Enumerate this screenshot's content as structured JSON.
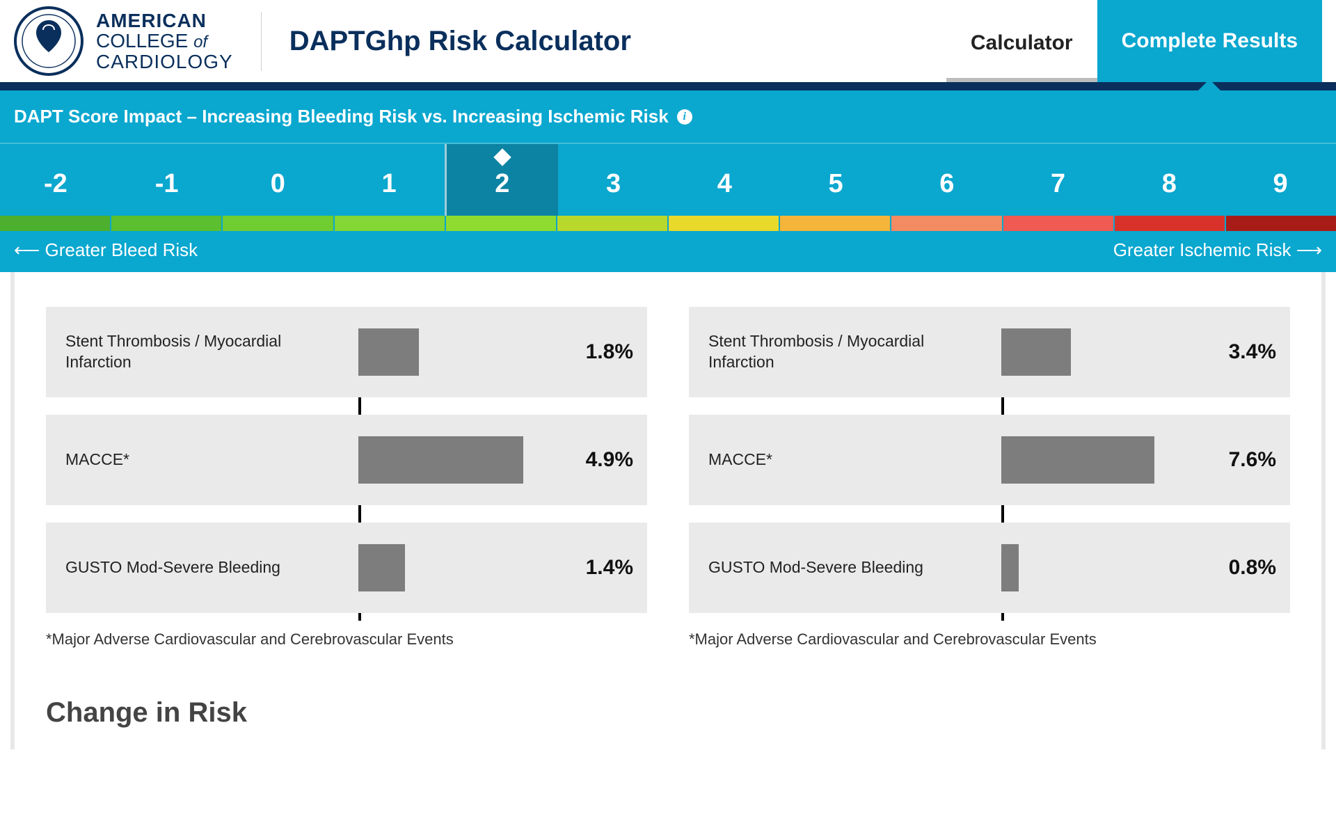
{
  "header": {
    "org_line1": "AMERICAN",
    "org_line2a": "COLLEGE",
    "org_line2b": "of",
    "org_line3": "CARDIOLOGY",
    "app_title": "DAPTGhp Risk Calculator",
    "tabs": {
      "calculator": "Calculator",
      "results": "Complete Results"
    },
    "logo_color": "#0a2f5c"
  },
  "score": {
    "title": "DAPT Score Impact – Increasing Bleeding Risk vs. Increasing Ischemic Risk",
    "values": [
      "-2",
      "-1",
      "0",
      "1",
      "2",
      "3",
      "4",
      "5",
      "6",
      "7",
      "8",
      "9"
    ],
    "selected_index": 4,
    "separator_after_index": 3,
    "strip_colors": [
      "#4caf2e",
      "#5bbf2f",
      "#6fcc31",
      "#83d633",
      "#8edc2f",
      "#b9d82c",
      "#e8d92a",
      "#f4b53a",
      "#f28a62",
      "#ef5b52",
      "#d8322a",
      "#a81c17"
    ],
    "left_label": "Greater Bleed Risk",
    "right_label": "Greater Ischemic Risk",
    "bg_color": "#0aa7cf",
    "selected_bg": "#0d83a3"
  },
  "panels": {
    "left": {
      "metrics": [
        {
          "label": "Stent Thrombosis / Myocardial Infarction",
          "value": "1.8%",
          "bar_pct": 21
        },
        {
          "label": "MACCE*",
          "value": "4.9%",
          "bar_pct": 57
        },
        {
          "label": "GUSTO Mod-Severe Bleeding",
          "value": "1.4%",
          "bar_pct": 16
        }
      ],
      "footnote": "*Major Adverse Cardiovascular and Cerebrovascular Events"
    },
    "right": {
      "metrics": [
        {
          "label": "Stent Thrombosis / Myocardial Infarction",
          "value": "3.4%",
          "bar_pct": 24
        },
        {
          "label": "MACCE*",
          "value": "7.6%",
          "bar_pct": 53
        },
        {
          "label": "GUSTO Mod-Severe Bleeding",
          "value": "0.8%",
          "bar_pct": 6
        }
      ],
      "footnote": "*Major Adverse Cardiovascular and Cerebrovascular Events"
    },
    "bar_color": "#7d7d7d",
    "row_bg": "#eaeaea"
  },
  "section_heading": "Change in Risk"
}
